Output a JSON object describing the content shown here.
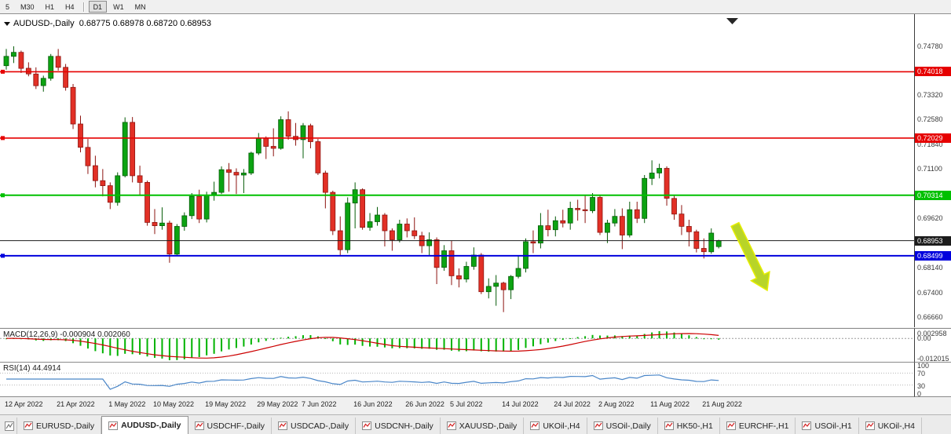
{
  "toolbar": {
    "groups": [
      [
        "5",
        "M30",
        "H1",
        "H4"
      ],
      [
        "D1",
        "W1",
        "MN"
      ]
    ],
    "active": "D1"
  },
  "chart": {
    "symbol": "AUDUSD-,Daily",
    "ohlc": "0.68775 0.68978 0.68720 0.68953"
  },
  "price_axis": {
    "scale": [
      {
        "label": "0.74780",
        "price": 0.7478
      },
      {
        "label": "0.73320",
        "price": 0.7332
      },
      {
        "label": "0.72580",
        "price": 0.7258
      },
      {
        "label": "0.71840",
        "price": 0.7184
      },
      {
        "label": "0.71100",
        "price": 0.711
      },
      {
        "label": "0.69620",
        "price": 0.6962
      },
      {
        "label": "0.68140",
        "price": 0.6814
      },
      {
        "label": "0.67400",
        "price": 0.674
      },
      {
        "label": "0.66660",
        "price": 0.6666
      }
    ]
  },
  "chart_data": {
    "type": "candlestick",
    "symbol": "AUDUSD",
    "timeframe": "Daily",
    "current_ohlc": {
      "open": 0.68775,
      "high": 0.68978,
      "low": 0.6872,
      "close": 0.68953
    },
    "price_range_visible": [
      0.66355,
      0.75745
    ],
    "bull_color": "#0ca312",
    "bull_border": "#065c08",
    "bear_color": "#e23026",
    "bear_border": "#8d1410",
    "horizontal_lines": [
      {
        "price": 0.74018,
        "label": "0.74018",
        "color": "#e60000",
        "kind": "resistance",
        "weight": 1.6
      },
      {
        "price": 0.72029,
        "label": "0.72029",
        "color": "#e60000",
        "kind": "resistance",
        "weight": 1.6
      },
      {
        "price": 0.70314,
        "label": "0.70314",
        "color": "#00c000",
        "kind": "support",
        "weight": 2
      },
      {
        "price": 0.68953,
        "label": "0.68953",
        "color": "#1c1c1c",
        "kind": "current-price",
        "weight": 1,
        "handle": false
      },
      {
        "price": 0.68499,
        "label": "0.68499",
        "color": "#0000dd",
        "kind": "support",
        "weight": 2
      }
    ],
    "annotations": [
      {
        "type": "arrow",
        "direction": "down-right",
        "color": "#b8d428",
        "outline": "#e6ee00"
      }
    ],
    "candles": [
      [
        0.742,
        0.747,
        0.7408,
        0.7448
      ],
      [
        0.7448,
        0.7478,
        0.7428,
        0.746
      ],
      [
        0.746,
        0.7465,
        0.7398,
        0.7412
      ],
      [
        0.7412,
        0.743,
        0.7388,
        0.7395
      ],
      [
        0.7395,
        0.7415,
        0.735,
        0.736
      ],
      [
        0.736,
        0.739,
        0.7342,
        0.7382
      ],
      [
        0.7382,
        0.7455,
        0.7375,
        0.7448
      ],
      [
        0.7448,
        0.747,
        0.7405,
        0.7415
      ],
      [
        0.7415,
        0.7425,
        0.7345,
        0.7355
      ],
      [
        0.7355,
        0.7365,
        0.723,
        0.7245
      ],
      [
        0.7245,
        0.727,
        0.716,
        0.7175
      ],
      [
        0.7175,
        0.72,
        0.7095,
        0.712
      ],
      [
        0.712,
        0.715,
        0.7055,
        0.7075
      ],
      [
        0.7075,
        0.711,
        0.7028,
        0.706
      ],
      [
        0.706,
        0.707,
        0.699,
        0.701
      ],
      [
        0.701,
        0.71,
        0.7,
        0.709
      ],
      [
        0.709,
        0.7265,
        0.7085,
        0.725
      ],
      [
        0.725,
        0.7266,
        0.707,
        0.709
      ],
      [
        0.709,
        0.712,
        0.703,
        0.707
      ],
      [
        0.707,
        0.7075,
        0.694,
        0.695
      ],
      [
        0.695,
        0.699,
        0.6915,
        0.694
      ],
      [
        0.694,
        0.6995,
        0.6928,
        0.6948
      ],
      [
        0.6948,
        0.6955,
        0.6829,
        0.6855
      ],
      [
        0.6855,
        0.6945,
        0.685,
        0.6938
      ],
      [
        0.6938,
        0.698,
        0.6925,
        0.697
      ],
      [
        0.697,
        0.7038,
        0.696,
        0.7028
      ],
      [
        0.7028,
        0.7048,
        0.6948,
        0.696
      ],
      [
        0.696,
        0.7042,
        0.695,
        0.7032
      ],
      [
        0.7032,
        0.7072,
        0.7015,
        0.704
      ],
      [
        0.704,
        0.7118,
        0.7035,
        0.7108
      ],
      [
        0.7108,
        0.7128,
        0.7042,
        0.71
      ],
      [
        0.71,
        0.7112,
        0.7035,
        0.7092
      ],
      [
        0.7092,
        0.711,
        0.7038,
        0.7098
      ],
      [
        0.7098,
        0.7162,
        0.7092,
        0.7158
      ],
      [
        0.7158,
        0.7218,
        0.7152,
        0.7202
      ],
      [
        0.7202,
        0.7208,
        0.714,
        0.7178
      ],
      [
        0.7178,
        0.7232,
        0.7148,
        0.7172
      ],
      [
        0.7172,
        0.7268,
        0.7168,
        0.7258
      ],
      [
        0.7258,
        0.7283,
        0.7198,
        0.7208
      ],
      [
        0.7208,
        0.7248,
        0.718,
        0.7198
      ],
      [
        0.7198,
        0.7248,
        0.7142,
        0.724
      ],
      [
        0.724,
        0.7246,
        0.7172,
        0.7192
      ],
      [
        0.7192,
        0.72,
        0.7092,
        0.7098
      ],
      [
        0.7098,
        0.7105,
        0.6992,
        0.704
      ],
      [
        0.704,
        0.7045,
        0.6912,
        0.6925
      ],
      [
        0.6925,
        0.6968,
        0.685,
        0.6868
      ],
      [
        0.6868,
        0.7025,
        0.6858,
        0.7008
      ],
      [
        0.7008,
        0.707,
        0.6932,
        0.7048
      ],
      [
        0.7048,
        0.7052,
        0.6928,
        0.6935
      ],
      [
        0.6935,
        0.6978,
        0.6925,
        0.6952
      ],
      [
        0.6952,
        0.6996,
        0.694,
        0.6972
      ],
      [
        0.6972,
        0.6978,
        0.6878,
        0.6925
      ],
      [
        0.6925,
        0.6932,
        0.6865,
        0.6898
      ],
      [
        0.6898,
        0.6958,
        0.689,
        0.6945
      ],
      [
        0.6945,
        0.6962,
        0.6905,
        0.6925
      ],
      [
        0.6925,
        0.6965,
        0.69,
        0.691
      ],
      [
        0.691,
        0.6922,
        0.6858,
        0.688
      ],
      [
        0.688,
        0.692,
        0.685,
        0.6898
      ],
      [
        0.6898,
        0.6905,
        0.6765,
        0.6815
      ],
      [
        0.6815,
        0.6882,
        0.6805,
        0.6865
      ],
      [
        0.6865,
        0.6895,
        0.6762,
        0.679
      ],
      [
        0.679,
        0.6812,
        0.6755,
        0.678
      ],
      [
        0.678,
        0.6832,
        0.677,
        0.6818
      ],
      [
        0.6818,
        0.6875,
        0.6808,
        0.6852
      ],
      [
        0.6852,
        0.6858,
        0.6735,
        0.6742
      ],
      [
        0.6742,
        0.6782,
        0.6722,
        0.6758
      ],
      [
        0.6758,
        0.6792,
        0.67,
        0.6768
      ],
      [
        0.6768,
        0.6772,
        0.6681,
        0.6748
      ],
      [
        0.6748,
        0.6792,
        0.672,
        0.6788
      ],
      [
        0.6788,
        0.6852,
        0.6782,
        0.6812
      ],
      [
        0.6812,
        0.6902,
        0.68,
        0.6892
      ],
      [
        0.6892,
        0.6926,
        0.6858,
        0.6888
      ],
      [
        0.6888,
        0.6978,
        0.6872,
        0.694
      ],
      [
        0.694,
        0.6988,
        0.6908,
        0.6928
      ],
      [
        0.6928,
        0.6968,
        0.6908,
        0.6955
      ],
      [
        0.6955,
        0.6988,
        0.6935,
        0.6948
      ],
      [
        0.6948,
        0.7012,
        0.6928,
        0.6992
      ],
      [
        0.6992,
        0.7018,
        0.6955,
        0.6988
      ],
      [
        0.6988,
        0.7032,
        0.6948,
        0.6985
      ],
      [
        0.6985,
        0.7038,
        0.6978,
        0.7025
      ],
      [
        0.7025,
        0.7032,
        0.6912,
        0.692
      ],
      [
        0.692,
        0.6958,
        0.6888,
        0.6948
      ],
      [
        0.6948,
        0.699,
        0.6938,
        0.6968
      ],
      [
        0.6968,
        0.6992,
        0.687,
        0.6912
      ],
      [
        0.6912,
        0.7012,
        0.6905,
        0.6988
      ],
      [
        0.6988,
        0.7012,
        0.6948,
        0.6962
      ],
      [
        0.6962,
        0.7092,
        0.6948,
        0.7082
      ],
      [
        0.7082,
        0.7136,
        0.7062,
        0.7098
      ],
      [
        0.7098,
        0.7126,
        0.7082,
        0.7112
      ],
      [
        0.7112,
        0.7118,
        0.7,
        0.7022
      ],
      [
        0.7022,
        0.7032,
        0.6958,
        0.6975
      ],
      [
        0.6975,
        0.7002,
        0.6912,
        0.6938
      ],
      [
        0.6938,
        0.6958,
        0.6878,
        0.6922
      ],
      [
        0.6922,
        0.6928,
        0.686,
        0.6872
      ],
      [
        0.6872,
        0.6902,
        0.6842,
        0.6862
      ],
      [
        0.6862,
        0.6932,
        0.6856,
        0.6918
      ],
      [
        0.68775,
        0.68978,
        0.6872,
        0.68953
      ]
    ],
    "x_ticks": [
      {
        "i": 0,
        "label": "12 Apr 2022"
      },
      {
        "i": 7,
        "label": "21 Apr 2022"
      },
      {
        "i": 14,
        "label": "1 May 2022"
      },
      {
        "i": 20,
        "label": "10 May 2022"
      },
      {
        "i": 27,
        "label": "19 May 2022"
      },
      {
        "i": 34,
        "label": "29 May 2022"
      },
      {
        "i": 40,
        "label": "7 Jun 2022"
      },
      {
        "i": 47,
        "label": "16 Jun 2022"
      },
      {
        "i": 54,
        "label": "26 Jun 2022"
      },
      {
        "i": 60,
        "label": "5 Jul 2022"
      },
      {
        "i": 67,
        "label": "14 Jul 2022"
      },
      {
        "i": 74,
        "label": "24 Jul 2022"
      },
      {
        "i": 80,
        "label": "2 Aug 2022"
      },
      {
        "i": 87,
        "label": "11 Aug 2022"
      },
      {
        "i": 94,
        "label": "21 Aug 2022"
      }
    ],
    "indicators": [
      {
        "type": "MACD",
        "label": "MACD(12,26,9) -0.000904 0.002060",
        "params": [
          12,
          26,
          9
        ],
        "main": -0.000904,
        "signal": 0.00206,
        "histogram_color": "#00b300",
        "signal_color": "#cc0000",
        "axis_labels": [
          "0.002958",
          "0.00",
          "-0.012015"
        ]
      },
      {
        "type": "RSI",
        "label": "RSI(14) 44.4914",
        "params": [
          14
        ],
        "value": 44.4914,
        "line_color": "#4a86c8",
        "levels": [
          70,
          30
        ],
        "axis_labels": [
          "100",
          "70",
          "30",
          "0"
        ]
      }
    ]
  },
  "tab_bar": {
    "tabs": [
      {
        "label": "EURUSD-,Daily",
        "active": false
      },
      {
        "label": "AUDUSD-,Daily",
        "active": true
      },
      {
        "label": "USDCHF-,Daily",
        "active": false
      },
      {
        "label": "USDCAD-,Daily",
        "active": false
      },
      {
        "label": "USDCNH-,Daily",
        "active": false
      },
      {
        "label": "XAUUSD-,Daily",
        "active": false
      },
      {
        "label": "UKOil-,H4",
        "active": false
      },
      {
        "label": "USOil-,Daily",
        "active": false
      },
      {
        "label": "HK50-,H1",
        "active": false
      },
      {
        "label": "EURCHF-,H1",
        "active": false
      },
      {
        "label": "USOil-,H1",
        "active": false
      },
      {
        "label": "UKOil-,H4",
        "active": false
      }
    ]
  }
}
